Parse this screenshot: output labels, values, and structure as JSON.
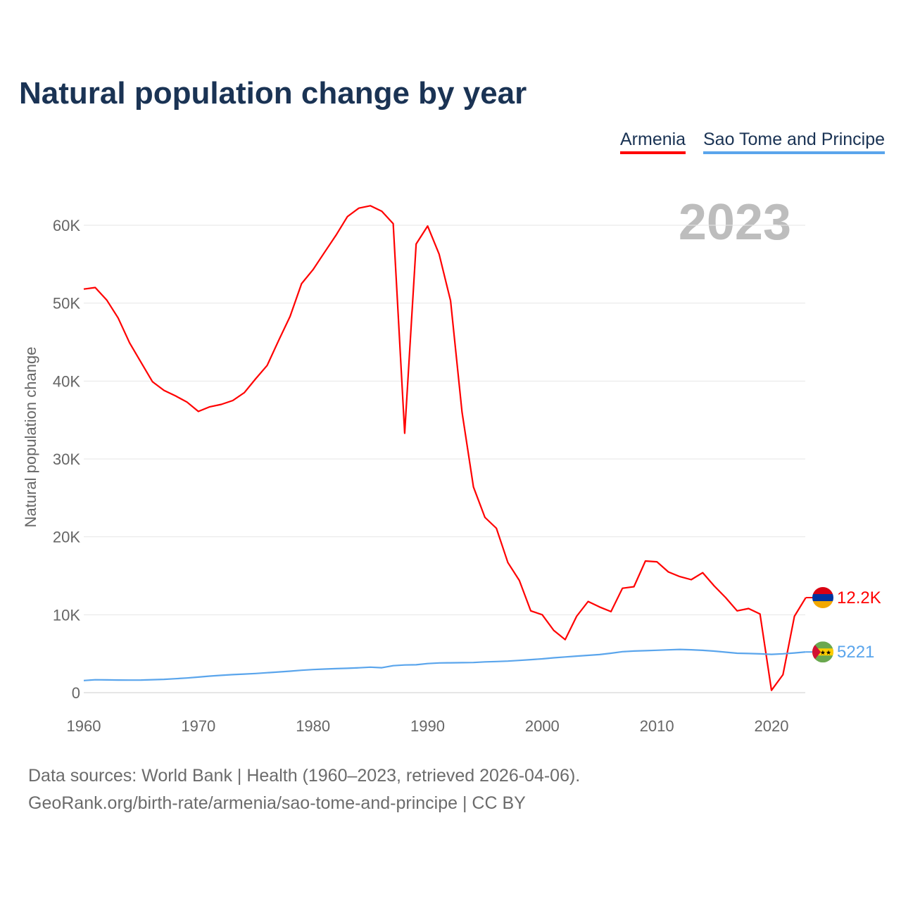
{
  "title": "Natural population change by year",
  "legend": [
    {
      "name": "Armenia",
      "color": "#ff0000"
    },
    {
      "name": "Sao Tome and Principe",
      "color": "#5aa5ec"
    }
  ],
  "year_label": "2023",
  "footer": {
    "line1": "Data sources: World Bank | Health (1960–2023, retrieved 2026-04-06).",
    "line2": "GeoRank.org/birth-rate/armenia/sao-tome-and-principe | CC BY"
  },
  "chart_data": {
    "type": "line",
    "title": "Natural population change by year",
    "xlabel": "",
    "ylabel": "Natural population change",
    "xlim": [
      1960,
      2023
    ],
    "ylim": [
      0,
      65000
    ],
    "xticks": [
      1960,
      1970,
      1980,
      1990,
      2000,
      2010,
      2020
    ],
    "yticks": [
      0,
      10000,
      20000,
      30000,
      40000,
      50000,
      60000
    ],
    "ytick_labels": [
      "0",
      "10K",
      "20K",
      "30K",
      "40K",
      "50K",
      "60K"
    ],
    "grid": true,
    "legend_position": "top-right",
    "x": [
      1960,
      1961,
      1962,
      1963,
      1964,
      1965,
      1966,
      1967,
      1968,
      1969,
      1970,
      1971,
      1972,
      1973,
      1974,
      1975,
      1976,
      1977,
      1978,
      1979,
      1980,
      1981,
      1982,
      1983,
      1984,
      1985,
      1986,
      1987,
      1988,
      1989,
      1990,
      1991,
      1992,
      1993,
      1994,
      1995,
      1996,
      1997,
      1998,
      1999,
      2000,
      2001,
      2002,
      2003,
      2004,
      2005,
      2006,
      2007,
      2008,
      2009,
      2010,
      2011,
      2012,
      2013,
      2014,
      2015,
      2016,
      2017,
      2018,
      2019,
      2020,
      2021,
      2022,
      2023
    ],
    "series": [
      {
        "name": "Armenia",
        "color": "#ff0000",
        "end_label": "12.2K",
        "values": [
          51800,
          52000,
          50400,
          48100,
          44900,
          42400,
          39900,
          38800,
          38100,
          37300,
          36100,
          36700,
          37000,
          37500,
          38500,
          40300,
          42000,
          45200,
          48300,
          52500,
          54300,
          56500,
          58700,
          61100,
          62200,
          62500,
          61800,
          60200,
          33300,
          57600,
          59900,
          56300,
          50300,
          36000,
          26400,
          22500,
          21100,
          16700,
          14400,
          10500,
          10000,
          8000,
          6800,
          9800,
          11700,
          11000,
          10400,
          13400,
          13600,
          16900,
          16800,
          15500,
          14900,
          14500,
          15400,
          13700,
          12200,
          10500,
          10800,
          10100,
          300,
          2300,
          9800,
          12200
        ]
      },
      {
        "name": "Sao Tome and Principe",
        "color": "#5aa5ec",
        "end_label": "5221",
        "values": [
          1550,
          1650,
          1640,
          1620,
          1610,
          1620,
          1660,
          1710,
          1790,
          1880,
          2000,
          2120,
          2220,
          2310,
          2390,
          2460,
          2560,
          2660,
          2760,
          2870,
          2960,
          3030,
          3080,
          3130,
          3190,
          3270,
          3200,
          3460,
          3550,
          3580,
          3730,
          3810,
          3830,
          3850,
          3870,
          3950,
          3990,
          4050,
          4140,
          4240,
          4340,
          4470,
          4580,
          4690,
          4790,
          4890,
          5060,
          5260,
          5340,
          5390,
          5440,
          5490,
          5550,
          5500,
          5430,
          5330,
          5200,
          5060,
          5020,
          4980,
          4920,
          4990,
          5100,
          5221
        ]
      }
    ]
  }
}
